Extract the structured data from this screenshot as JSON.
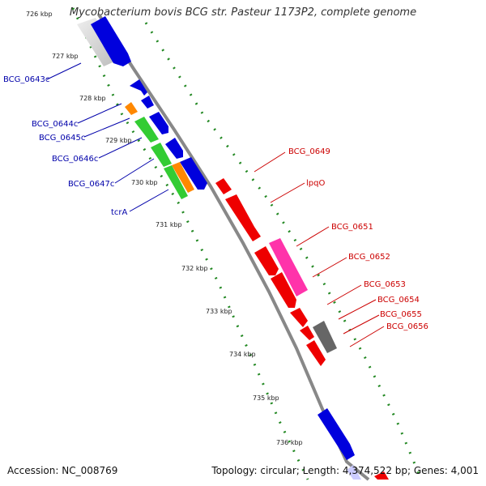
{
  "title": "Mycobacterium bovis BCG str. Pasteur 1173P2, complete genome",
  "footer": {
    "accession": "Accession: NC_008769",
    "summary": "Topology: circular; Length: 4,374,522 bp; Genes: 4,001"
  },
  "kbp_ticks": [
    "726 kbp",
    "727 kbp",
    "728 kbp",
    "729 kbp",
    "730 kbp",
    "731 kbp",
    "732 kbp",
    "733 kbp",
    "734 kbp",
    "735 kbp",
    "736 kbp"
  ],
  "gene_labels_left": [
    "BCG_0643c",
    "BCG_0644c",
    "BCG_0645c",
    "BCG_0646c",
    "BCG_0647c",
    "tcrA"
  ],
  "gene_labels_right": [
    "BCG_0649",
    "lpqO",
    "BCG_0651",
    "BCG_0652",
    "BCG_0653",
    "BCG_0654",
    "BCG_0655",
    "BCG_0656"
  ],
  "colors": {
    "forward_gene": "#ee0000",
    "reverse_gene": "#0000dd",
    "green_gene": "#33cc33",
    "orange_gene": "#ff8800",
    "pink_gene": "#ff33aa",
    "gray_gene": "#666666",
    "backbone": "#888888",
    "gc_dots": "#228822",
    "left_label": "#0000aa",
    "right_label": "#cc0000"
  }
}
